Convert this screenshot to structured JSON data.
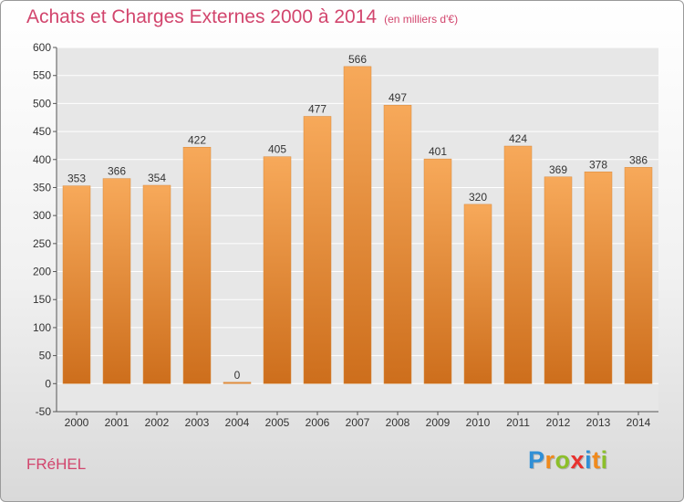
{
  "header": {
    "title": "Achats et Charges Externes 2000 à 2014",
    "subtitle": "(en milliers d'€)"
  },
  "footer": {
    "place": "FRéHEL",
    "logo": [
      "P",
      "r",
      "o",
      "x",
      "i",
      "t",
      "i"
    ],
    "logo_colors": [
      "#2f8fd6",
      "#f08a1c",
      "#8cbf2a",
      "#e8322e",
      "#2f8fd6",
      "#f08a1c",
      "#8cbf2a"
    ]
  },
  "chart_data": {
    "type": "bar",
    "title": "Achats et Charges Externes 2000 à 2014",
    "subtitle": "(en milliers d'€)",
    "categories": [
      "2000",
      "2001",
      "2002",
      "2003",
      "2004",
      "2005",
      "2006",
      "2007",
      "2008",
      "2009",
      "2010",
      "2011",
      "2012",
      "2013",
      "2014"
    ],
    "values": [
      353,
      366,
      354,
      422,
      0,
      405,
      477,
      566,
      497,
      401,
      320,
      424,
      369,
      378,
      386
    ],
    "ylim": [
      -50,
      600
    ],
    "yticks": [
      -50,
      0,
      50,
      100,
      150,
      200,
      250,
      300,
      350,
      400,
      450,
      500,
      550,
      600
    ],
    "grid": true,
    "bar_color_top": "#f7a95a",
    "bar_color_bottom": "#cd6e1c"
  }
}
